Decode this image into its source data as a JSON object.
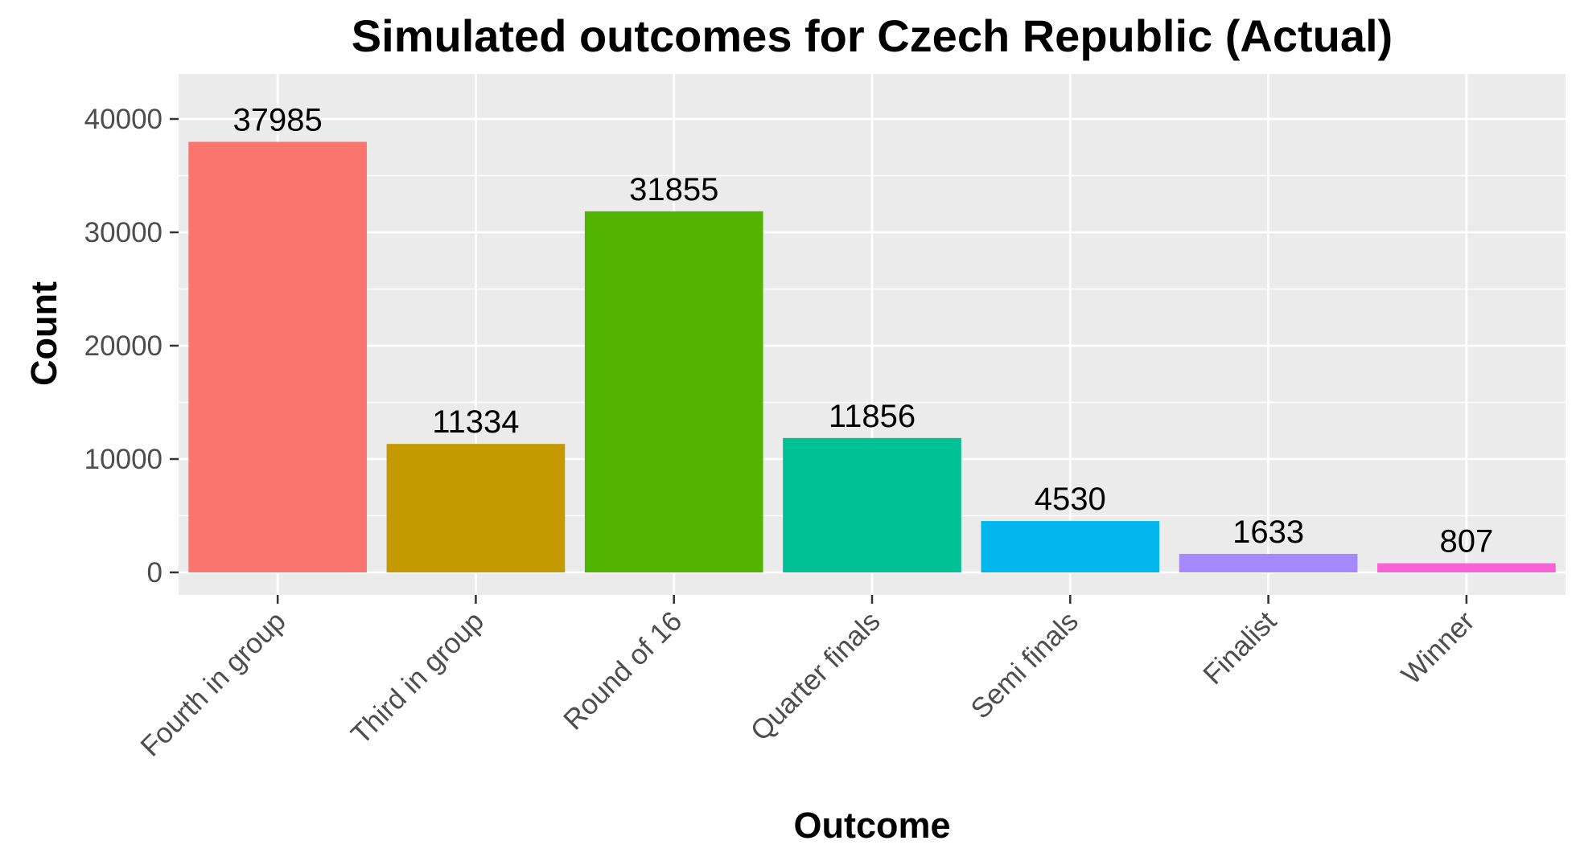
{
  "chart_data": {
    "type": "bar",
    "title": "Simulated outcomes for Czech Republic (Actual)",
    "xlabel": "Outcome",
    "ylabel": "Count",
    "categories": [
      "Fourth in group",
      "Third in group",
      "Round of 16",
      "Quarter finals",
      "Semi finals",
      "Finalist",
      "Winner"
    ],
    "values": [
      37985,
      11334,
      31855,
      11856,
      4530,
      1633,
      807
    ],
    "value_labels": [
      "37985",
      "11334",
      "31855",
      "11856",
      "4530",
      "1633",
      "807"
    ],
    "colors": [
      "#F8766D",
      "#C49A00",
      "#53B400",
      "#00C094",
      "#00B6EB",
      "#A58AFF",
      "#FB61D7"
    ],
    "yticks": [
      0,
      10000,
      20000,
      30000,
      40000
    ],
    "ytick_labels": [
      "0",
      "10000",
      "20000",
      "30000",
      "40000"
    ],
    "ylim": [
      -2000,
      40000
    ],
    "grid": true,
    "legend": "none",
    "panel_background": "#EBEBEB",
    "gridline_color": "#FFFFFF"
  }
}
